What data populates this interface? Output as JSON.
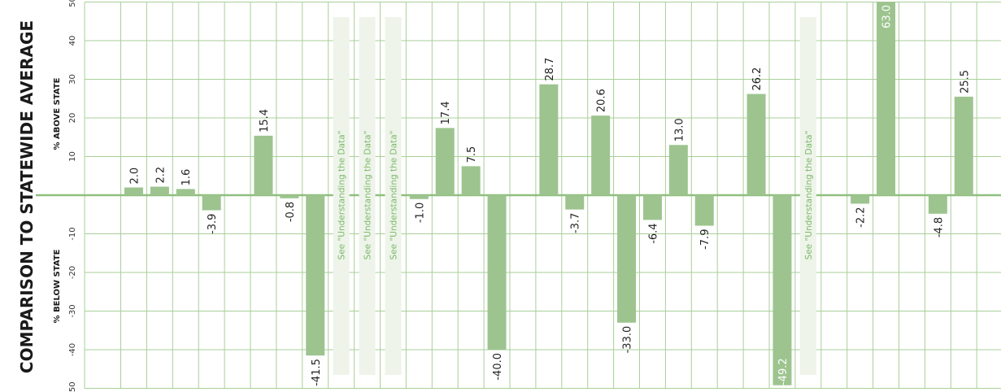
{
  "chart_data": {
    "type": "bar",
    "title": "COMPARISON TO STATEWIDE AVERAGE",
    "upper_label": "% ABOVE STATE",
    "lower_label": "% BELOW STATE",
    "ylim": [
      -50,
      50
    ],
    "yticks": [
      50,
      40,
      30,
      20,
      10,
      -10,
      -20,
      -30,
      -40,
      -50
    ],
    "grid": true,
    "colors": {
      "bar": "#9dc48f",
      "grid": "#a9cf99",
      "note_bg": "#eef4ea",
      "note_text": "#7cb86a"
    },
    "note_text": "See \"Understanding the Data\"",
    "values": [
      2.0,
      2.2,
      1.6,
      -3.9,
      null,
      15.4,
      -0.8,
      -41.5,
      "note",
      "note",
      "note",
      -1.0,
      17.4,
      7.5,
      -40.0,
      null,
      28.7,
      -3.7,
      20.6,
      -33.0,
      -6.4,
      13.0,
      -7.9,
      null,
      26.2,
      -49.2,
      "note",
      null,
      -2.2,
      63.0,
      null,
      -4.8,
      25.5
    ]
  }
}
